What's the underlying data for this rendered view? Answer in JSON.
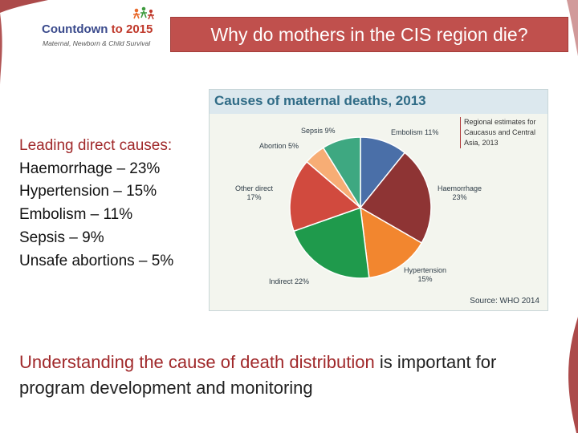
{
  "logo": {
    "main_text": "Countdown",
    "year_text": "to 2015",
    "sub_text": "Maternal, Newborn & Child Survival"
  },
  "slide_title": "Why do mothers in the CIS region die?",
  "causes": {
    "heading": "Leading direct causes:",
    "items": [
      "Haemorrhage – 23%",
      "Hypertension – 15%",
      "Embolism – 11%",
      "Sepsis – 9%",
      "Unsafe abortions – 5%"
    ]
  },
  "chart_data": {
    "type": "pie",
    "title": "Causes of maternal deaths, 2013",
    "slices": [
      {
        "label": "Embolism",
        "value": 11,
        "display": "11%",
        "color": "#4a6fa8"
      },
      {
        "label": "Haemorrhage",
        "value": 23,
        "display": "23%",
        "color": "#8e3434"
      },
      {
        "label": "Hypertension",
        "value": 15,
        "display": "15%",
        "color": "#f2862f"
      },
      {
        "label": "Indirect",
        "value": 22,
        "display": "22%",
        "color": "#1f9a4c"
      },
      {
        "label": "Other direct",
        "value": 17,
        "display": "17%",
        "color": "#d14a3e"
      },
      {
        "label": "Abortion",
        "value": 5,
        "display": "5%",
        "color": "#f7ad75"
      },
      {
        "label": "Sepsis",
        "value": 9,
        "display": "9%",
        "color": "#3ea881"
      }
    ],
    "legend_text": "Regional estimates for Caucasus and Central Asia, 2013",
    "source": "Source: WHO 2014"
  },
  "bottom": {
    "emphasis": "Understanding the cause of death distribution",
    "rest": " is important for program development and monitoring"
  },
  "colors": {
    "title_bar": "#c0504d",
    "accent_text": "#a0282a",
    "chart_title": "#2f6b86",
    "decoration": "#a33636"
  }
}
